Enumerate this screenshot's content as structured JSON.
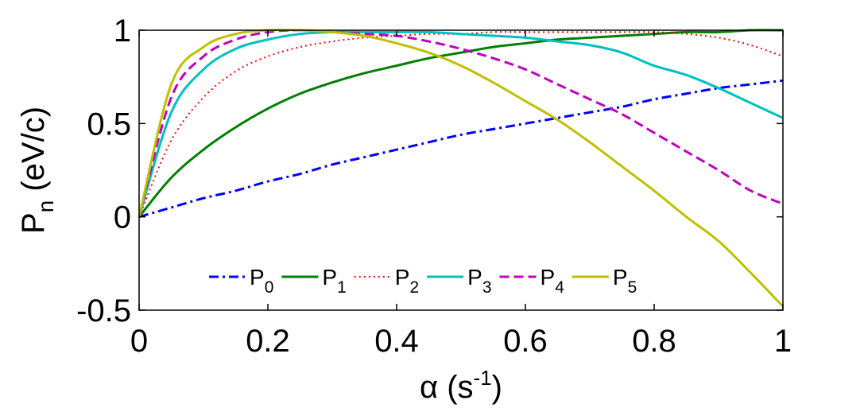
{
  "chart_data": {
    "type": "line",
    "title": "",
    "xlabel": {
      "base": "α (s",
      "sup": "-1",
      "tail": ")"
    },
    "ylabel": {
      "base": "P",
      "sub": "n",
      "tail": " (eV/c)"
    },
    "xlim": [
      0,
      1
    ],
    "ylim": [
      -0.5,
      1
    ],
    "xticks": [
      0,
      0.2,
      0.4,
      0.6,
      0.8,
      1
    ],
    "xtick_labels": [
      "0",
      "0.2",
      "0.4",
      "0.6",
      "0.8",
      "1"
    ],
    "yticks": [
      -0.5,
      0,
      0.5,
      1
    ],
    "ytick_labels": [
      "-0.5",
      "0",
      "0.5",
      "1"
    ],
    "grid": false,
    "legend_position": "bottom-center",
    "legend_orientation": "horizontal",
    "x": [
      0,
      0.05,
      0.1,
      0.15,
      0.2,
      0.25,
      0.3,
      0.35,
      0.4,
      0.45,
      0.5,
      0.55,
      0.6,
      0.65,
      0.7,
      0.75,
      0.8,
      0.85,
      0.9,
      0.95,
      1
    ],
    "series": [
      {
        "name": "P0",
        "label_base": "P",
        "label_sub": "0",
        "color": "#0000ff",
        "dash": "12 5 3 5",
        "values": [
          0,
          0.05,
          0.1,
          0.14,
          0.19,
          0.23,
          0.28,
          0.32,
          0.36,
          0.4,
          0.44,
          0.47,
          0.5,
          0.53,
          0.56,
          0.59,
          0.63,
          0.66,
          0.69,
          0.71,
          0.73
        ]
      },
      {
        "name": "P1",
        "label_base": "P",
        "label_sub": "1",
        "color": "#007f00",
        "dash": "",
        "values": [
          0,
          0.21,
          0.36,
          0.48,
          0.58,
          0.66,
          0.72,
          0.77,
          0.81,
          0.85,
          0.88,
          0.91,
          0.93,
          0.95,
          0.96,
          0.97,
          0.98,
          0.99,
          0.99,
          1.0,
          1.0
        ]
      },
      {
        "name": "P2",
        "label_base": "P",
        "label_sub": "2",
        "color": "#ff0000",
        "dash": "2 4",
        "values": [
          0,
          0.41,
          0.64,
          0.78,
          0.86,
          0.91,
          0.94,
          0.96,
          0.97,
          0.98,
          0.98,
          0.99,
          0.99,
          0.99,
          0.99,
          0.99,
          0.99,
          0.98,
          0.96,
          0.92,
          0.86
        ]
      },
      {
        "name": "P3",
        "label_base": "P",
        "label_sub": "3",
        "color": "#00bfbf",
        "dash": "",
        "values": [
          0,
          0.56,
          0.79,
          0.9,
          0.95,
          0.98,
          0.99,
          0.99,
          0.99,
          0.99,
          0.98,
          0.97,
          0.96,
          0.94,
          0.92,
          0.88,
          0.81,
          0.76,
          0.69,
          0.61,
          0.53
        ]
      },
      {
        "name": "P4",
        "label_base": "P",
        "label_sub": "4",
        "color": "#bf00bf",
        "dash": "12 6",
        "values": [
          0,
          0.64,
          0.86,
          0.95,
          0.99,
          1.0,
          0.99,
          0.98,
          0.97,
          0.94,
          0.9,
          0.85,
          0.79,
          0.71,
          0.63,
          0.55,
          0.45,
          0.35,
          0.25,
          0.14,
          0.07
        ]
      },
      {
        "name": "P5",
        "label_base": "P",
        "label_sub": "5",
        "color": "#bfbf00",
        "dash": "",
        "values": [
          0,
          0.71,
          0.91,
          0.98,
          1.0,
          1.0,
          0.99,
          0.97,
          0.93,
          0.88,
          0.81,
          0.72,
          0.62,
          0.52,
          0.4,
          0.27,
          0.14,
          0.0,
          -0.13,
          -0.3,
          -0.48
        ]
      }
    ]
  }
}
